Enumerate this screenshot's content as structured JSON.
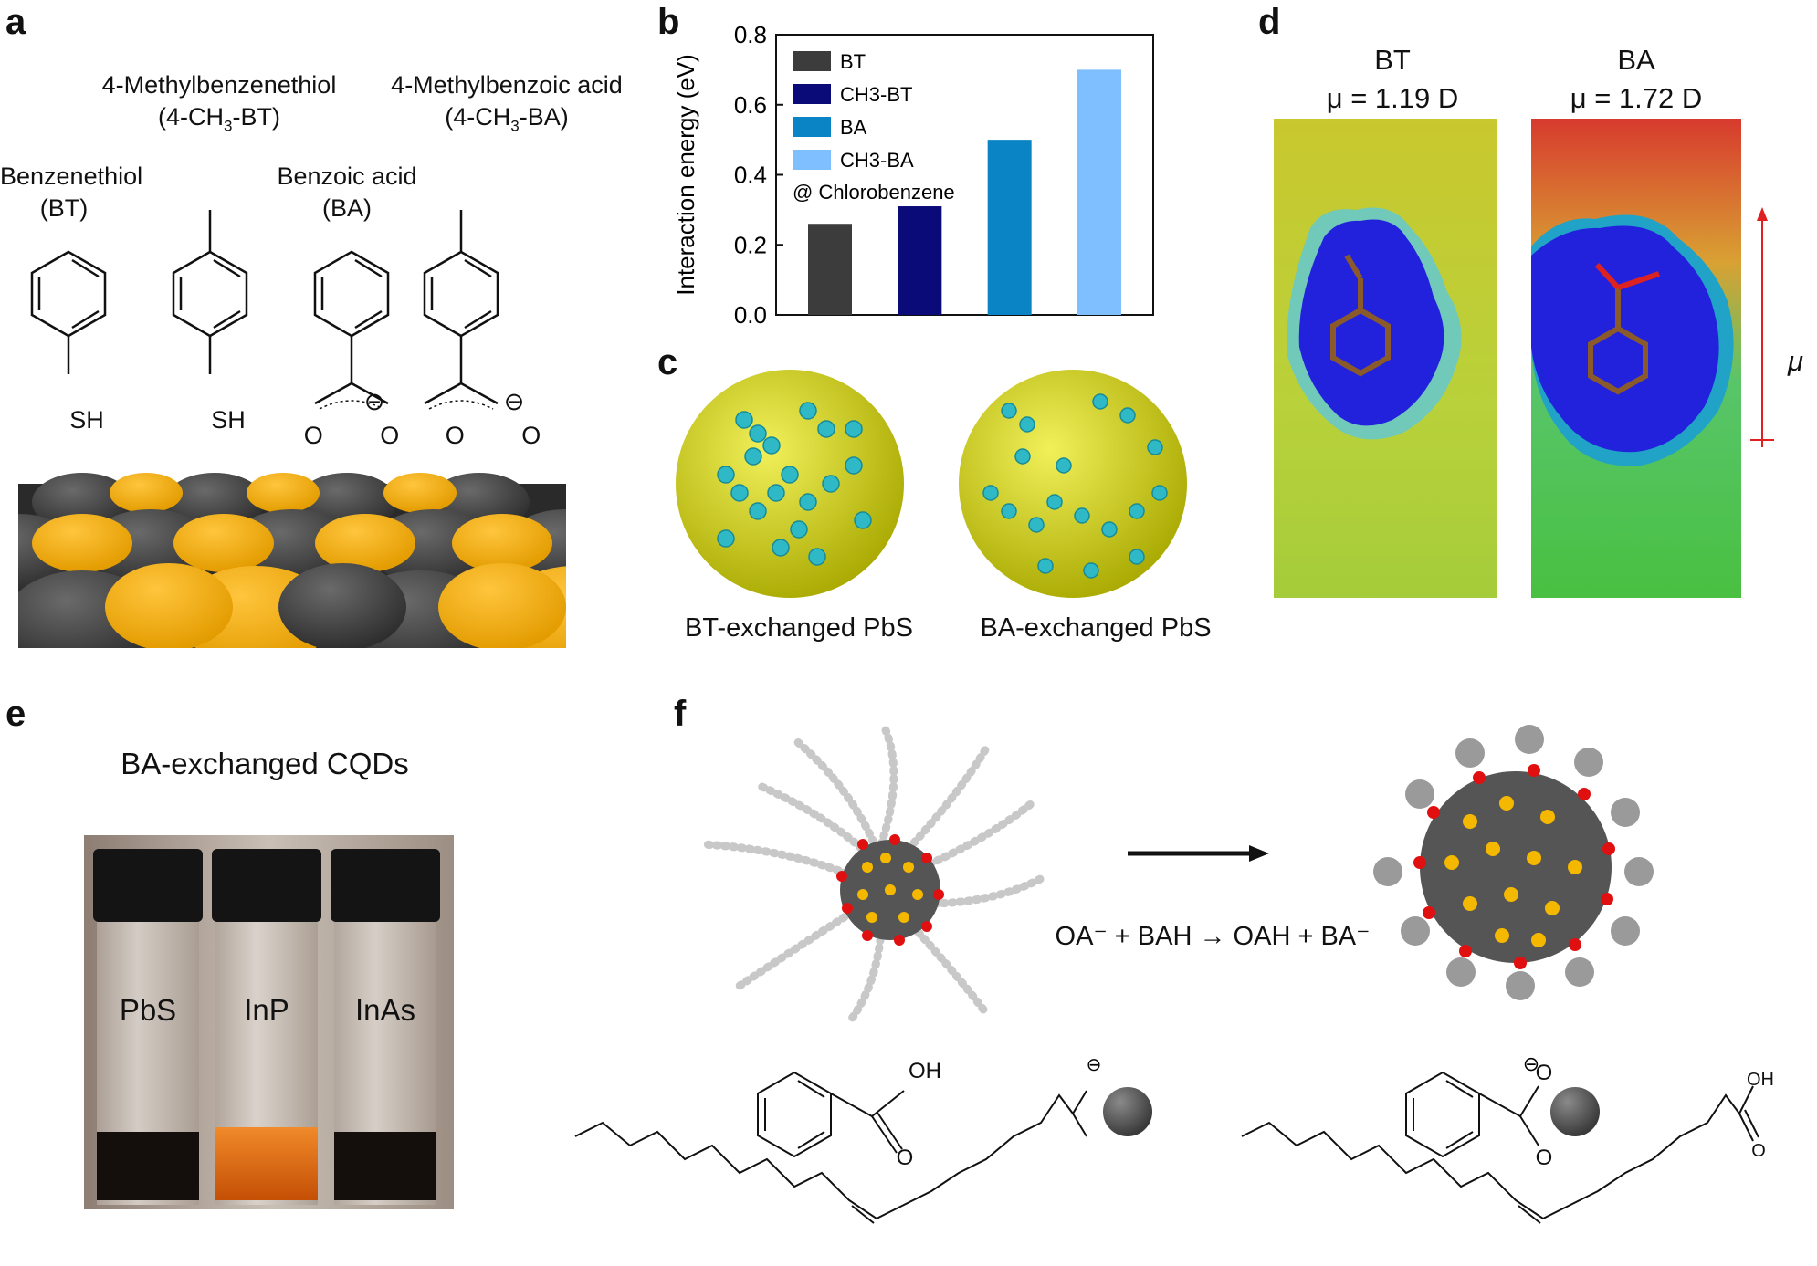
{
  "panels": {
    "a": {
      "label": "a",
      "molecules": [
        {
          "name": "Benzenethiol",
          "abbr": "(BT)",
          "group": "SH"
        },
        {
          "name": "4-Methylbenzenethiol",
          "abbr": "(4-CH3-BT)",
          "group": "SH"
        },
        {
          "name": "Benzoic acid",
          "abbr": "(BA)",
          "group": "O O"
        },
        {
          "name": "4-Methylbenzoic acid",
          "abbr": "(4-CH3-BA)",
          "group": "O O"
        }
      ],
      "charge_symbol": "⊖"
    },
    "b": {
      "label": "b"
    },
    "c": {
      "label": "c",
      "captions": [
        "BT-exchanged PbS",
        "BA-exchanged PbS"
      ]
    },
    "d": {
      "label": "d",
      "maps": [
        {
          "name": "BT",
          "dipole": "μ = 1.19 D"
        },
        {
          "name": "BA",
          "dipole": "μ = 1.72 D"
        }
      ],
      "arrow_label": "μ"
    },
    "e": {
      "label": "e",
      "title": "BA-exchanged CQDs",
      "vials": [
        "PbS",
        "InP",
        "InAs"
      ]
    },
    "f": {
      "label": "f",
      "reaction": "OA⁻ + BAH → OAH + BA⁻",
      "oh_label": "OH",
      "o_label": "O"
    }
  },
  "chart_data": {
    "type": "bar",
    "categories": [
      "BT",
      "CH3-BT",
      "BA",
      "CH3-BA"
    ],
    "values": [
      0.26,
      0.31,
      0.5,
      0.7
    ],
    "colors": [
      "#3c3c3c",
      "#0a0a78",
      "#0b84c5",
      "#7fbfff"
    ],
    "legend": [
      "BT",
      "CH3-BT",
      "BA",
      "CH3-BA"
    ],
    "annotation": "@ Chlorobenzene",
    "ylabel": "Interaction energy (eV)",
    "xlabel": "",
    "ylim": [
      0,
      0.8
    ],
    "yticks": [
      "0.0",
      "0.2",
      "0.4",
      "0.6",
      "0.8"
    ],
    "legend_placement": "top-left",
    "grid": false
  }
}
